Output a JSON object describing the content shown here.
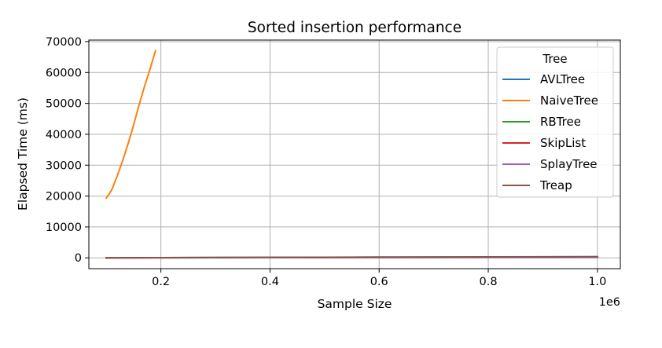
{
  "chart_data": {
    "type": "line",
    "title": "Sorted insertion performance",
    "xlabel": "Sample Size",
    "ylabel": "Elapsed Time (ms)",
    "x_offset_label": "1e6",
    "xlim": [
      68000,
      1042000
    ],
    "ylim": [
      -3500,
      70500
    ],
    "xticks": [
      200000,
      400000,
      600000,
      800000,
      1000000
    ],
    "xtick_labels": [
      "0.2",
      "0.4",
      "0.6",
      "0.8",
      "1.0"
    ],
    "yticks": [
      0,
      10000,
      20000,
      30000,
      40000,
      50000,
      60000,
      70000
    ],
    "ytick_labels": [
      "0",
      "10000",
      "20000",
      "30000",
      "40000",
      "50000",
      "60000",
      "70000"
    ],
    "grid": true,
    "legend": {
      "title": "Tree",
      "placement": "top-right"
    },
    "series": [
      {
        "name": "AVLTree",
        "color": "#1f77b4",
        "x": [
          100000,
          200000,
          300000,
          400000,
          500000,
          600000,
          700000,
          800000,
          900000,
          1000000
        ],
        "y": [
          30,
          60,
          95,
          130,
          165,
          200,
          235,
          270,
          305,
          340
        ]
      },
      {
        "name": "NaiveTree",
        "color": "#ff7f0e",
        "x": [
          100000,
          110000,
          120000,
          130000,
          140000,
          150000,
          160000,
          170000,
          180000,
          190000
        ],
        "y": [
          19300,
          22000,
          26500,
          31500,
          37000,
          43000,
          49500,
          55500,
          61000,
          67000
        ]
      },
      {
        "name": "RBTree",
        "color": "#2ca02c",
        "x": [
          100000,
          200000,
          300000,
          400000,
          500000,
          600000,
          700000,
          800000,
          900000,
          1000000
        ],
        "y": [
          25,
          50,
          80,
          110,
          140,
          170,
          200,
          230,
          260,
          290
        ]
      },
      {
        "name": "SkipList",
        "color": "#d62728",
        "x": [
          100000,
          200000,
          300000,
          400000,
          500000,
          600000,
          700000,
          800000,
          900000,
          1000000
        ],
        "y": [
          20,
          45,
          70,
          95,
          120,
          145,
          170,
          195,
          220,
          245
        ]
      },
      {
        "name": "SplayTree",
        "color": "#9467bd",
        "x": [
          100000,
          200000,
          300000,
          400000,
          500000,
          600000,
          700000,
          800000,
          900000,
          1000000
        ],
        "y": [
          15,
          30,
          45,
          60,
          75,
          90,
          105,
          120,
          135,
          150
        ]
      },
      {
        "name": "Treap",
        "color": "#8c564b",
        "x": [
          100000,
          200000,
          300000,
          400000,
          500000,
          600000,
          700000,
          800000,
          900000,
          1000000
        ],
        "y": [
          35,
          70,
          110,
          150,
          190,
          230,
          270,
          310,
          350,
          390
        ]
      }
    ]
  }
}
